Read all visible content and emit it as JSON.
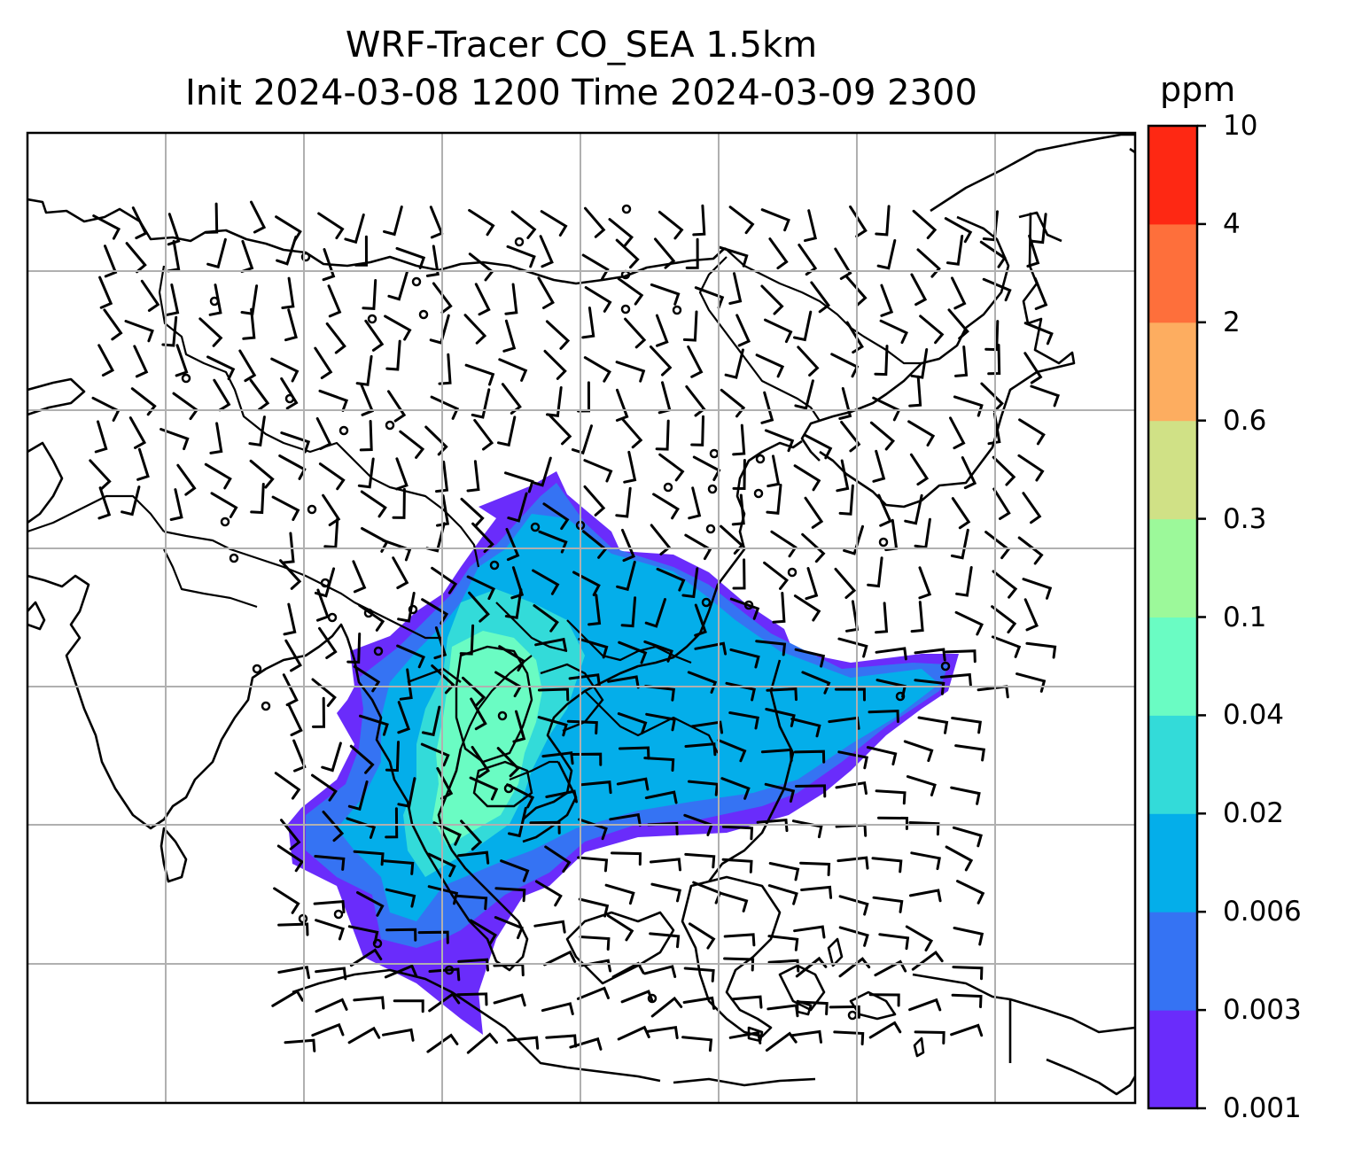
{
  "title_line1": "WRF-Tracer CO_SEA 1.5km",
  "title_line2": "Init 2024-03-08 1200 Time 2024-03-09 2300",
  "colorbar": {
    "unit": "ppm",
    "ticks": [
      "0.001",
      "0.003",
      "0.006",
      "0.02",
      "0.04",
      "0.1",
      "0.3",
      "0.6",
      "2",
      "4",
      "10"
    ],
    "colors": [
      "#6a2cfb",
      "#3573f3",
      "#04aeea",
      "#33dbd9",
      "#6afcc3",
      "#9cf99a",
      "#d0e186",
      "#fdad60",
      "#fe6f3b",
      "#fe2813"
    ]
  },
  "map": {
    "grid": true,
    "wind_barbs": true,
    "calm_markers": true,
    "field_levels": [
      "0.001",
      "0.003",
      "0.006",
      "0.02",
      "0.04"
    ]
  }
}
